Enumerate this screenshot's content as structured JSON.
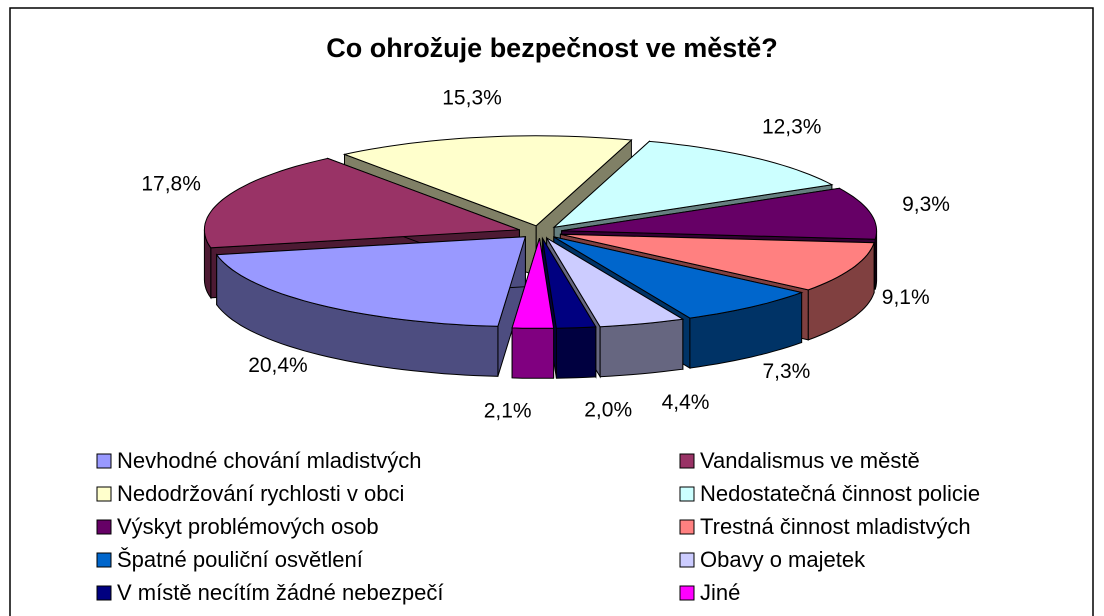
{
  "chart_data": {
    "type": "pie3d",
    "title": "Co ohrožuje bezpečnost ve městě?",
    "categories": [
      "Nevhodné chování mladistvých",
      "Vandalismus ve městě",
      "Nedodržování rychlosti v obci",
      "Nedostatečná činnost policie",
      "Výskyt problémových osob",
      "Trestná činnost mladistvých",
      "Špatné pouliční osvětlení",
      "Obavy o majetek",
      "V místě necítím žádné nebezpečí",
      "Jiné"
    ],
    "values": [
      20.4,
      17.8,
      15.3,
      12.3,
      9.3,
      9.1,
      7.3,
      4.4,
      2.0,
      2.1
    ],
    "value_labels": [
      "20,4%",
      "17,8%",
      "15,3%",
      "12,3%",
      "9,3%",
      "9,1%",
      "7,3%",
      "4,4%",
      "2,0%",
      "2,1%"
    ],
    "colors": [
      "#9999ff",
      "#993366",
      "#ffffcc",
      "#ccffff",
      "#660066",
      "#ff8080",
      "#0066cc",
      "#ccccff",
      "#000080",
      "#ff00ff"
    ],
    "legend": "bottom"
  }
}
